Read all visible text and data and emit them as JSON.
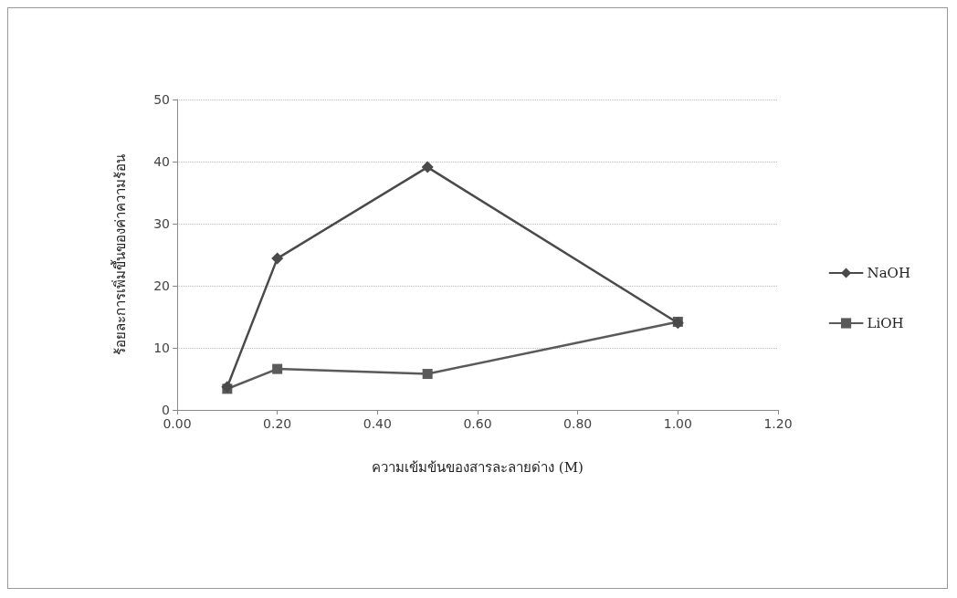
{
  "chart_data": {
    "type": "line",
    "xlabel": "ความเข้มข้นของสารละลายด่าง (M)",
    "ylabel": "ร้อยละการเพิ่มขึ้นของค่าความร้อน",
    "x": [
      0.1,
      0.2,
      0.5,
      1.0
    ],
    "series": [
      {
        "name": "NaOH",
        "color": "#4a4a4a",
        "marker": "diamond",
        "values": [
          3.7,
          24.4,
          39.1,
          14
        ]
      },
      {
        "name": "LiOH",
        "color": "#5a5a5a",
        "marker": "square",
        "values": [
          3.4,
          6.6,
          5.8,
          14.2
        ]
      }
    ],
    "xlim": [
      0,
      1.2
    ],
    "xticks": [
      {
        "value": 0,
        "label": "0.00"
      },
      {
        "value": 0.2,
        "label": "0.20"
      },
      {
        "value": 0.4,
        "label": "0.40"
      },
      {
        "value": 0.6,
        "label": "0.60"
      },
      {
        "value": 0.8,
        "label": "0.80"
      },
      {
        "value": 1,
        "label": "1.00"
      },
      {
        "value": 1.2,
        "label": "1.20"
      }
    ],
    "ylim": [
      0,
      50
    ],
    "yticks": [
      0,
      10,
      20,
      30,
      40,
      50
    ],
    "grid": "y",
    "legend": "right",
    "line_style": "solid"
  }
}
